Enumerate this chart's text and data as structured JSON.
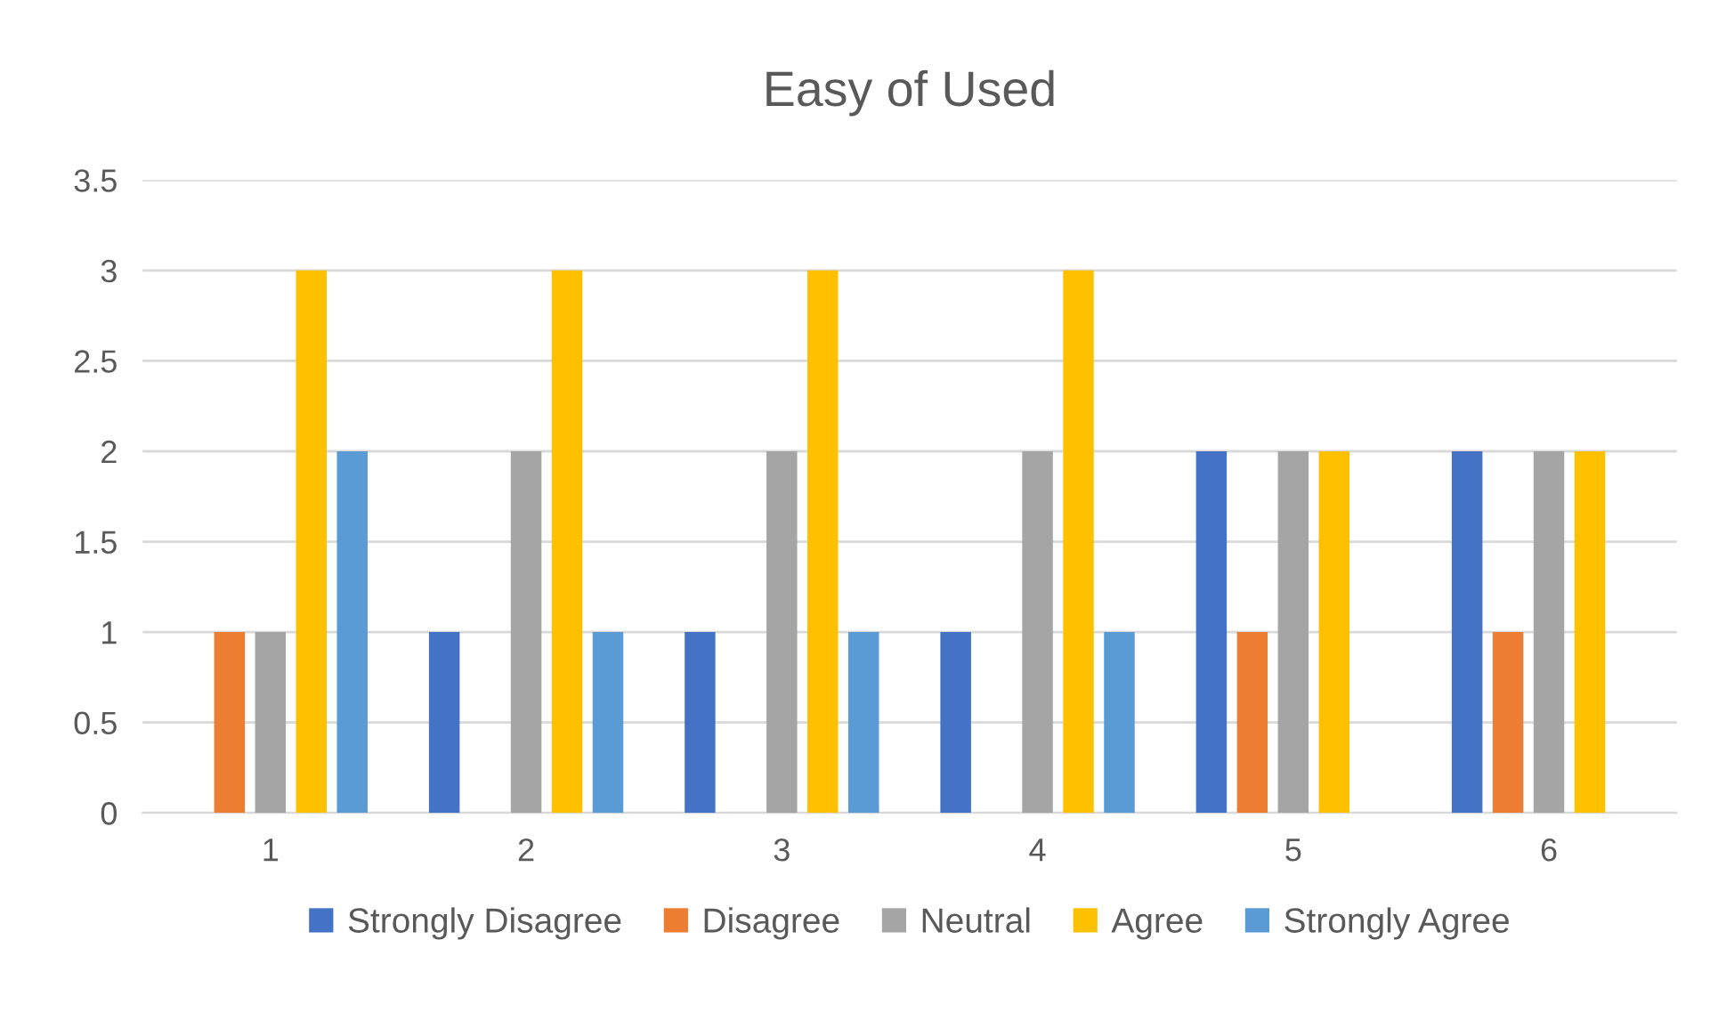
{
  "chart_data": {
    "type": "bar",
    "title": "Easy of Used",
    "categories": [
      "1",
      "2",
      "3",
      "4",
      "5",
      "6"
    ],
    "series": [
      {
        "name": "Strongly Disagree",
        "color": "#4472c4",
        "values": [
          0,
          1,
          1,
          1,
          2,
          2
        ]
      },
      {
        "name": "Disagree",
        "color": "#ed7d31",
        "values": [
          1,
          0,
          0,
          0,
          1,
          1
        ]
      },
      {
        "name": "Neutral",
        "color": "#a5a5a5",
        "values": [
          1,
          2,
          2,
          2,
          2,
          2
        ]
      },
      {
        "name": "Agree",
        "color": "#ffc000",
        "values": [
          3,
          3,
          3,
          3,
          2,
          2
        ]
      },
      {
        "name": "Strongly Agree",
        "color": "#5b9bd5",
        "values": [
          2,
          1,
          1,
          1,
          0,
          0
        ]
      }
    ],
    "ylim": [
      0,
      3.5
    ],
    "yticks": [
      0,
      0.5,
      1,
      1.5,
      2,
      2.5,
      3,
      3.5
    ],
    "grid": "y",
    "legend": "bottom"
  }
}
